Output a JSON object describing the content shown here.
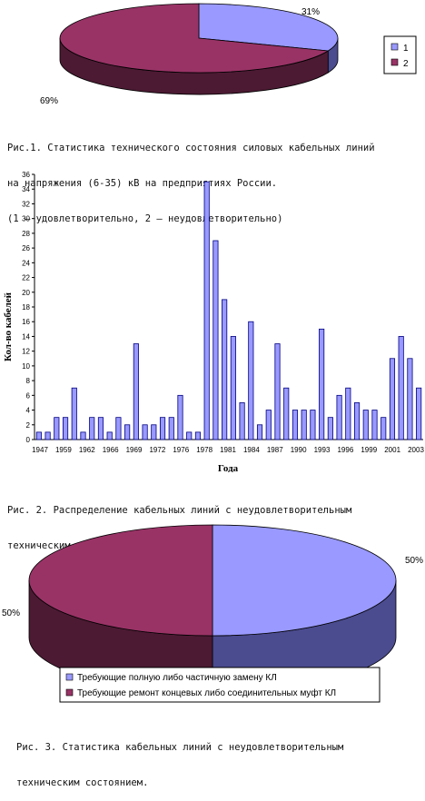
{
  "colors": {
    "slice1_top": "#9999ff",
    "slice1_side": "#4b4b8f",
    "slice2_top": "#993366",
    "slice2_side": "#4c1a33",
    "bar_fill": "#9999ff",
    "bar_stroke": "#000080"
  },
  "captions": {
    "fig1_line1": "Рис.1. Статистика технического состояния силовых кабельных линий",
    "fig1_line2": "на напряжения (6-35) кВ на предприятиях России.",
    "fig1_line3": "(1 – удовлетворительно, 2 – неудовлетворительно)",
    "fig2_line1": "Рис. 2. Распределение кабельных линий с неудовлетворительным",
    "fig2_line2": "техническим состоянием по годам ввода в эксплуатацию.",
    "fig3_line1": "Рис. 3. Статистика кабельных линий с неудовлетворительным",
    "fig3_line2": "техническим состоянием."
  },
  "chart_data": [
    {
      "type": "pie",
      "labels": [
        "1",
        "2"
      ],
      "values": [
        31,
        69
      ],
      "data_labels": [
        "31%",
        "69%"
      ],
      "legend": [
        "1",
        "2"
      ],
      "legend_placement": "right"
    },
    {
      "type": "bar",
      "xlabel": "Года",
      "ylabel": "Кол-во кабелей",
      "ylim": [
        0,
        36
      ],
      "yticks": [
        "0",
        "2",
        "4",
        "6",
        "8",
        "10",
        "12",
        "14",
        "16",
        "18",
        "20",
        "22",
        "24",
        "26",
        "28",
        "30",
        "32",
        "34",
        "36"
      ],
      "xtick_labels": [
        "1947",
        "1959",
        "1962",
        "1966",
        "1969",
        "1972",
        "1976",
        "1978",
        "1981",
        "1984",
        "1987",
        "1990",
        "1993",
        "1996",
        "1999",
        "2001",
        "2003"
      ],
      "values": [
        1,
        1,
        3,
        3,
        7,
        1,
        3,
        3,
        1,
        3,
        2,
        13,
        2,
        2,
        3,
        3,
        6,
        1,
        1,
        35,
        27,
        19,
        14,
        5,
        16,
        2,
        4,
        13,
        7,
        4,
        4,
        4,
        15,
        3,
        6,
        7,
        5,
        4,
        4,
        3,
        11,
        14,
        11,
        7
      ],
      "grid": false
    },
    {
      "type": "pie",
      "labels": [
        "Требующие полную либо частичную замену КЛ",
        "Требующие ремонт концевых либо соединительных муфт КЛ"
      ],
      "values": [
        50,
        50
      ],
      "data_labels": [
        "50%",
        "50%"
      ],
      "legend": [
        "Требующие полную либо частичную замену КЛ",
        "Требующие ремонт концевых либо соединительных муфт КЛ"
      ],
      "legend_placement": "bottom"
    }
  ]
}
